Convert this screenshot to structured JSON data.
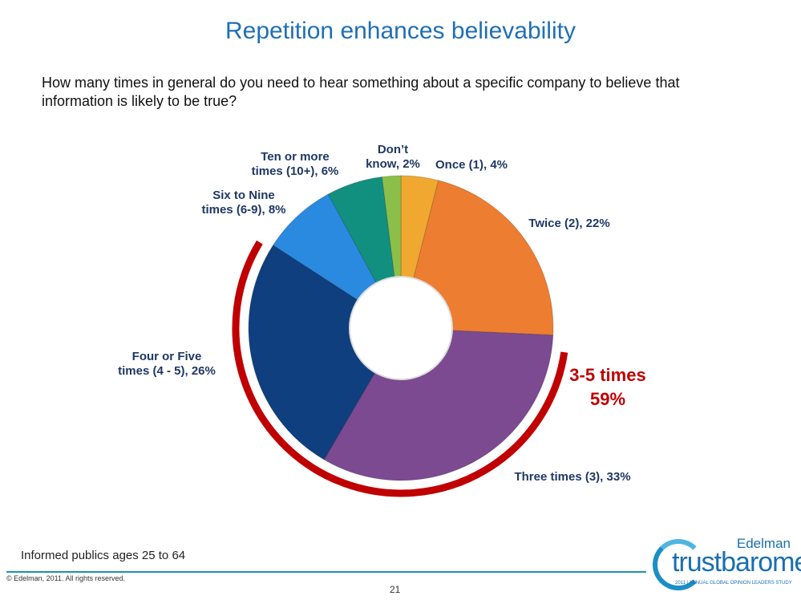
{
  "title": "Repetition enhances believability",
  "question": "How many times in general do you need to hear something about a specific company to believe that information is likely to be true?",
  "chart_data": {
    "type": "pie",
    "style": "donut",
    "start": "top, clockwise",
    "slices": [
      {
        "label": [
          "Once (1), 4%"
        ],
        "value": 4,
        "color": "#f0a830"
      },
      {
        "label": [
          "Twice (2), 22%"
        ],
        "value": 22,
        "color": "#ed7d31"
      },
      {
        "label": [
          "Three times (3), 33%"
        ],
        "value": 33,
        "color": "#7b4a91"
      },
      {
        "label": [
          "Four or Five",
          "times (4 - 5), 26%"
        ],
        "value": 26,
        "color": "#0f3f7e"
      },
      {
        "label": [
          "Six to Nine",
          "times (6-9), 8%"
        ],
        "value": 8,
        "color": "#2a8ae0"
      },
      {
        "label": [
          "Ten or more",
          "times (10+), 6%"
        ],
        "value": 6,
        "color": "#12907f"
      },
      {
        "label": [
          "Don’t",
          "know, 2%"
        ],
        "value": 2,
        "color": "#8cbf4a"
      }
    ],
    "highlight": {
      "label": [
        "3-5 times",
        "59%"
      ],
      "color": "#c00000",
      "covers": [
        "Three times (3), 33%",
        "Four or Five times (4 - 5), 26%"
      ]
    }
  },
  "footer": {
    "note": "Informed publics ages 25 to 64",
    "copyright": "© Edelman, 2011. All rights reserved.",
    "page": "21",
    "logo": {
      "brand": "Edelman",
      "name": "trustbarometer",
      "tagline": "2011 | ANNUAL GLOBAL OPINION LEADERS STUDY"
    }
  }
}
